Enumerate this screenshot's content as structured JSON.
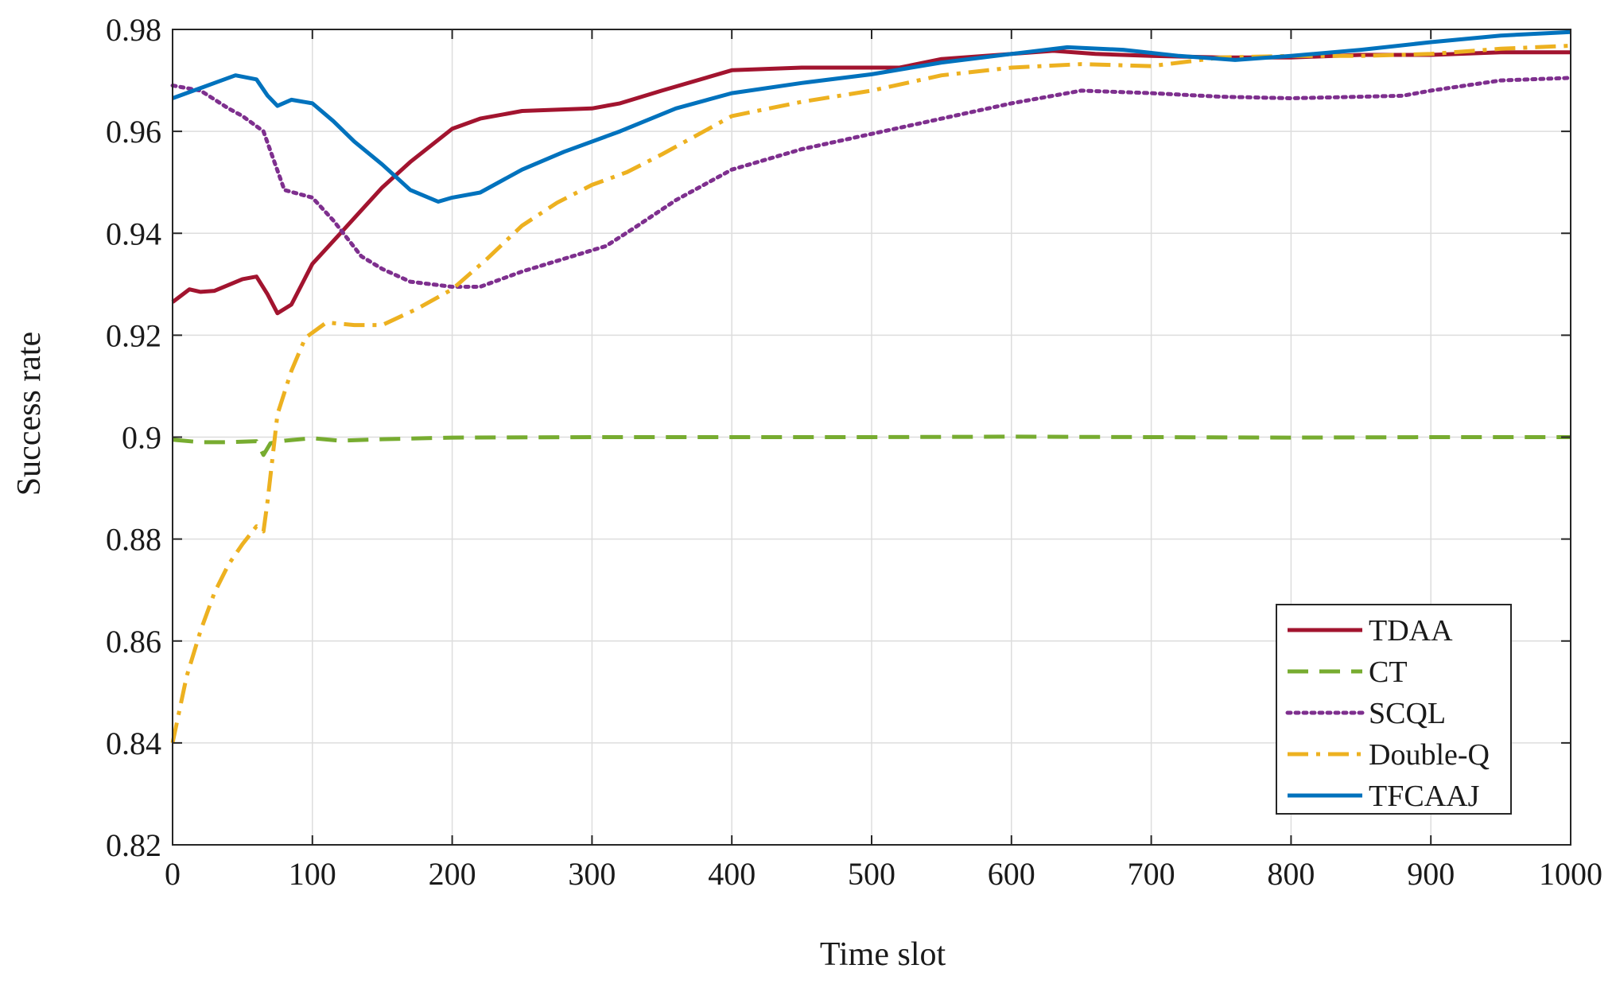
{
  "chart_data": {
    "type": "line",
    "title": "",
    "xlabel": "Time slot",
    "ylabel": "Success rate",
    "xlim": [
      0,
      1000
    ],
    "ylim": [
      0.82,
      0.98
    ],
    "xticks": [
      0,
      100,
      200,
      300,
      400,
      500,
      600,
      700,
      800,
      900,
      1000
    ],
    "xtick_labels": [
      "0",
      "100",
      "200",
      "300",
      "400",
      "500",
      "600",
      "700",
      "800",
      "900",
      "1000"
    ],
    "yticks": [
      0.82,
      0.84,
      0.86,
      0.88,
      0.9,
      0.92,
      0.94,
      0.96,
      0.98
    ],
    "ytick_labels": [
      "0.82",
      "0.84",
      "0.86",
      "0.88",
      "0.9",
      "0.92",
      "0.94",
      "0.96",
      "0.98"
    ],
    "grid": true,
    "legend_position": "bottom-right",
    "series": [
      {
        "name": "TDAA",
        "color": "#a2142f",
        "style": "solid",
        "x": [
          0,
          12,
          20,
          30,
          50,
          60,
          68,
          75,
          85,
          100,
          120,
          135,
          150,
          170,
          200,
          220,
          250,
          300,
          320,
          350,
          400,
          450,
          500,
          520,
          550,
          600,
          630,
          660,
          700,
          750,
          800,
          850,
          900,
          950,
          1000
        ],
        "y": [
          0.9265,
          0.929,
          0.9285,
          0.9287,
          0.931,
          0.9315,
          0.928,
          0.9243,
          0.926,
          0.934,
          0.94,
          0.9445,
          0.949,
          0.954,
          0.9605,
          0.9625,
          0.964,
          0.9645,
          0.9655,
          0.968,
          0.972,
          0.9725,
          0.9725,
          0.9725,
          0.9742,
          0.9752,
          0.9758,
          0.9752,
          0.9748,
          0.9745,
          0.9745,
          0.975,
          0.975,
          0.9755,
          0.9755
        ]
      },
      {
        "name": "CT",
        "color": "#77ac30",
        "style": "dashed",
        "x": [
          0,
          20,
          40,
          60,
          65,
          70,
          80,
          100,
          120,
          150,
          200,
          300,
          400,
          500,
          600,
          700,
          800,
          900,
          1000
        ],
        "y": [
          0.8995,
          0.899,
          0.899,
          0.8992,
          0.8965,
          0.8988,
          0.8993,
          0.8998,
          0.8993,
          0.8996,
          0.8999,
          0.9,
          0.9,
          0.9,
          0.9001,
          0.9,
          0.8999,
          0.9,
          0.9
        ]
      },
      {
        "name": "SCQL",
        "color": "#7e2f8e",
        "style": "dotted",
        "x": [
          0,
          20,
          40,
          50,
          65,
          80,
          100,
          115,
          135,
          150,
          170,
          200,
          220,
          250,
          280,
          310,
          330,
          360,
          400,
          450,
          500,
          550,
          600,
          650,
          700,
          750,
          800,
          850,
          880,
          900,
          950,
          1000
        ],
        "y": [
          0.969,
          0.968,
          0.9645,
          0.963,
          0.96,
          0.9485,
          0.947,
          0.9425,
          0.9355,
          0.933,
          0.9305,
          0.9295,
          0.9295,
          0.9325,
          0.935,
          0.9375,
          0.941,
          0.9465,
          0.9525,
          0.9565,
          0.9595,
          0.9625,
          0.9655,
          0.968,
          0.9675,
          0.9668,
          0.9665,
          0.9668,
          0.967,
          0.968,
          0.97,
          0.9705
        ]
      },
      {
        "name": "Double-Q",
        "color": "#edb120",
        "style": "dashdot",
        "x": [
          0,
          10,
          20,
          30,
          40,
          50,
          60,
          65,
          68,
          75,
          85,
          95,
          110,
          130,
          150,
          175,
          200,
          225,
          250,
          275,
          300,
          325,
          350,
          400,
          450,
          500,
          550,
          600,
          650,
          700,
          750,
          800,
          850,
          900,
          950,
          1000
        ],
        "y": [
          0.84,
          0.853,
          0.862,
          0.8695,
          0.875,
          0.879,
          0.8825,
          0.8815,
          0.8875,
          0.9045,
          0.913,
          0.9195,
          0.9225,
          0.922,
          0.922,
          0.9252,
          0.929,
          0.935,
          0.9415,
          0.946,
          0.9495,
          0.952,
          0.9555,
          0.963,
          0.9658,
          0.968,
          0.971,
          0.9725,
          0.9732,
          0.9728,
          0.9745,
          0.9748,
          0.9748,
          0.9752,
          0.9762,
          0.9768
        ]
      },
      {
        "name": "TFCAAJ",
        "color": "#0072bd",
        "style": "solid",
        "x": [
          0,
          15,
          30,
          45,
          60,
          68,
          75,
          85,
          100,
          115,
          130,
          150,
          170,
          190,
          200,
          220,
          250,
          280,
          320,
          360,
          400,
          450,
          500,
          550,
          600,
          640,
          680,
          720,
          760,
          800,
          850,
          900,
          950,
          1000
        ],
        "y": [
          0.9665,
          0.968,
          0.9695,
          0.971,
          0.9702,
          0.967,
          0.965,
          0.9662,
          0.9655,
          0.962,
          0.958,
          0.9535,
          0.9485,
          0.9462,
          0.947,
          0.948,
          0.9525,
          0.956,
          0.96,
          0.9645,
          0.9675,
          0.9695,
          0.9712,
          0.9735,
          0.9752,
          0.9765,
          0.976,
          0.9748,
          0.974,
          0.9748,
          0.976,
          0.9775,
          0.9788,
          0.9795
        ]
      }
    ]
  }
}
